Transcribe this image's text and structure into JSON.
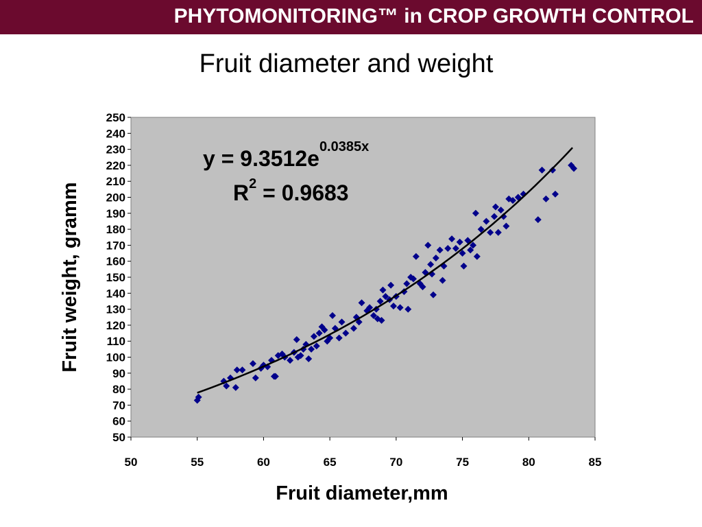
{
  "header": {
    "banner_title": "PHYTOMONITORING™ in CROP GROWTH CONTROL",
    "slide_title": "Fruit diameter and weight"
  },
  "colors": {
    "banner": "#6b0a2e",
    "plot_background": "#c0c0c0",
    "marker": "#00008b",
    "trendline": "#000000"
  },
  "chart_data": {
    "type": "scatter",
    "title": "",
    "xlabel": "Fruit diameter,mm",
    "ylabel": "Fruit weight, gramm",
    "xlim": [
      50,
      85
    ],
    "ylim": [
      50,
      250
    ],
    "xticks": [
      50,
      55,
      60,
      65,
      70,
      75,
      80,
      85
    ],
    "yticks": [
      50,
      60,
      70,
      80,
      90,
      100,
      110,
      120,
      130,
      140,
      150,
      160,
      170,
      180,
      190,
      200,
      210,
      220,
      230,
      240,
      250
    ],
    "grid": false,
    "legend": "none",
    "marker": "diamond",
    "trendline": {
      "type": "exponential",
      "a": 9.3512,
      "b": 0.0385,
      "x_range": [
        55,
        83.3
      ],
      "equation_main": "y = 9.3512e",
      "equation_exp": "0.0385x",
      "r2_main": "R",
      "r2_sup": "2",
      "r2_value": " = 0.9683"
    },
    "points": [
      [
        55,
        73
      ],
      [
        55.1,
        75
      ],
      [
        57,
        85
      ],
      [
        57.2,
        82
      ],
      [
        57.5,
        87
      ],
      [
        57.9,
        81
      ],
      [
        58,
        92
      ],
      [
        58.4,
        92
      ],
      [
        59.2,
        96
      ],
      [
        59.4,
        87
      ],
      [
        59.8,
        93
      ],
      [
        60,
        95
      ],
      [
        60.3,
        94
      ],
      [
        60.6,
        98
      ],
      [
        60.8,
        88
      ],
      [
        60.9,
        88
      ],
      [
        61.1,
        101
      ],
      [
        61.4,
        102
      ],
      [
        61.6,
        100
      ],
      [
        62,
        98
      ],
      [
        62.3,
        103
      ],
      [
        62.5,
        111
      ],
      [
        62.6,
        100
      ],
      [
        62.8,
        101
      ],
      [
        63,
        105
      ],
      [
        63.2,
        108
      ],
      [
        63.4,
        99
      ],
      [
        63.6,
        105
      ],
      [
        63.8,
        113
      ],
      [
        64,
        107
      ],
      [
        64.2,
        115
      ],
      [
        64.4,
        119
      ],
      [
        64.6,
        117
      ],
      [
        64.8,
        110
      ],
      [
        65,
        112
      ],
      [
        65.2,
        126
      ],
      [
        65.4,
        118
      ],
      [
        65.7,
        112
      ],
      [
        65.9,
        122
      ],
      [
        66.2,
        115
      ],
      [
        66.8,
        118
      ],
      [
        67,
        125
      ],
      [
        67.2,
        122
      ],
      [
        67.4,
        134
      ],
      [
        67.8,
        129
      ],
      [
        68,
        131
      ],
      [
        68.3,
        126
      ],
      [
        68.5,
        130
      ],
      [
        68.6,
        124
      ],
      [
        68.8,
        135
      ],
      [
        68.9,
        123
      ],
      [
        69,
        142
      ],
      [
        69.2,
        138
      ],
      [
        69.5,
        136
      ],
      [
        69.6,
        145
      ],
      [
        69.8,
        132
      ],
      [
        70,
        138
      ],
      [
        70.3,
        131
      ],
      [
        70.6,
        141
      ],
      [
        70.8,
        146
      ],
      [
        70.9,
        130
      ],
      [
        71.1,
        150
      ],
      [
        71.3,
        149
      ],
      [
        71.5,
        163
      ],
      [
        71.8,
        146
      ],
      [
        72,
        144
      ],
      [
        72.2,
        153
      ],
      [
        72.4,
        170
      ],
      [
        72.6,
        158
      ],
      [
        72.7,
        152
      ],
      [
        72.8,
        139
      ],
      [
        73,
        162
      ],
      [
        73.3,
        167
      ],
      [
        73.5,
        148
      ],
      [
        73.6,
        157
      ],
      [
        73.9,
        168
      ],
      [
        74.2,
        174
      ],
      [
        74.5,
        168
      ],
      [
        74.8,
        172
      ],
      [
        75,
        165
      ],
      [
        75.1,
        157
      ],
      [
        75.4,
        173
      ],
      [
        75.6,
        167
      ],
      [
        75.8,
        170
      ],
      [
        76,
        190
      ],
      [
        76.1,
        163
      ],
      [
        76.4,
        180
      ],
      [
        76.8,
        185
      ],
      [
        77.1,
        178
      ],
      [
        77.4,
        188
      ],
      [
        77.5,
        194
      ],
      [
        77.7,
        178
      ],
      [
        77.9,
        192
      ],
      [
        78.1,
        188
      ],
      [
        78.3,
        182
      ],
      [
        78.5,
        199
      ],
      [
        78.8,
        198
      ],
      [
        79.2,
        200
      ],
      [
        79.6,
        202
      ],
      [
        80.7,
        186
      ],
      [
        81,
        217
      ],
      [
        81.3,
        199
      ],
      [
        81.8,
        217
      ],
      [
        82,
        202
      ],
      [
        83.2,
        220
      ],
      [
        83.4,
        218
      ]
    ]
  }
}
